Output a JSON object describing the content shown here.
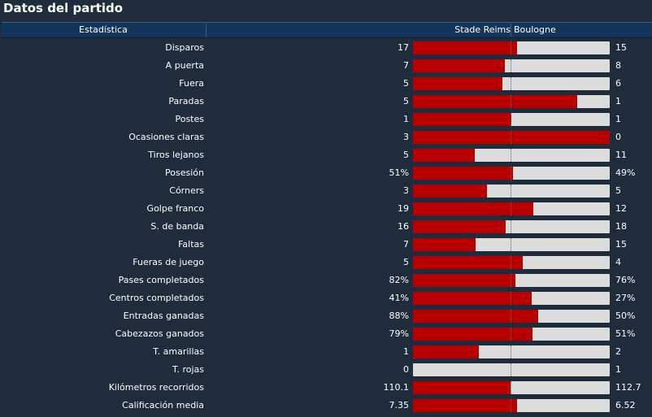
{
  "title": "Datos del partido",
  "header": {
    "stat_label": "Estadística",
    "home": "Stade Reims",
    "away": "Boulogne"
  },
  "colors": {
    "home_bar": "#b80000",
    "away_bar": "#dcdcdc",
    "header_bg": "#153459",
    "bg": "#1f2c3c"
  },
  "stats": [
    {
      "label": "Disparos",
      "home": "17",
      "away": "15",
      "home_share": 0.53
    },
    {
      "label": "A puerta",
      "home": "7",
      "away": "8",
      "home_share": 0.467
    },
    {
      "label": "Fuera",
      "home": "5",
      "away": "6",
      "home_share": 0.455
    },
    {
      "label": "Paradas",
      "home": "5",
      "away": "1",
      "home_share": 0.833
    },
    {
      "label": "Postes",
      "home": "1",
      "away": "1",
      "home_share": 0.5
    },
    {
      "label": "Ocasiones claras",
      "home": "3",
      "away": "0",
      "home_share": 1.0
    },
    {
      "label": "Tiros lejanos",
      "home": "5",
      "away": "11",
      "home_share": 0.3125
    },
    {
      "label": "Posesión",
      "home": "51%",
      "away": "49%",
      "home_share": 0.51
    },
    {
      "label": "Córners",
      "home": "3",
      "away": "5",
      "home_share": 0.375
    },
    {
      "label": "Golpe franco",
      "home": "19",
      "away": "12",
      "home_share": 0.613
    },
    {
      "label": "S. de banda",
      "home": "16",
      "away": "18",
      "home_share": 0.47
    },
    {
      "label": "Faltas",
      "home": "7",
      "away": "15",
      "home_share": 0.318
    },
    {
      "label": "Fueras de juego",
      "home": "5",
      "away": "4",
      "home_share": 0.556
    },
    {
      "label": "Pases completados",
      "home": "82%",
      "away": "76%",
      "home_share": 0.519
    },
    {
      "label": "Centros completados",
      "home": "41%",
      "away": "27%",
      "home_share": 0.603
    },
    {
      "label": "Entradas ganadas",
      "home": "88%",
      "away": "50%",
      "home_share": 0.638
    },
    {
      "label": "Cabezazos ganados",
      "home": "79%",
      "away": "51%",
      "home_share": 0.608
    },
    {
      "label": "T. amarillas",
      "home": "1",
      "away": "2",
      "home_share": 0.333
    },
    {
      "label": "T. rojas",
      "home": "0",
      "away": "1",
      "home_share": 0.0
    },
    {
      "label": "Kilómetros recorridos",
      "home": "110.1",
      "away": "112.7",
      "home_share": 0.494
    },
    {
      "label": "Calificación media",
      "home": "7.35",
      "away": "6.52",
      "home_share": 0.53
    }
  ]
}
